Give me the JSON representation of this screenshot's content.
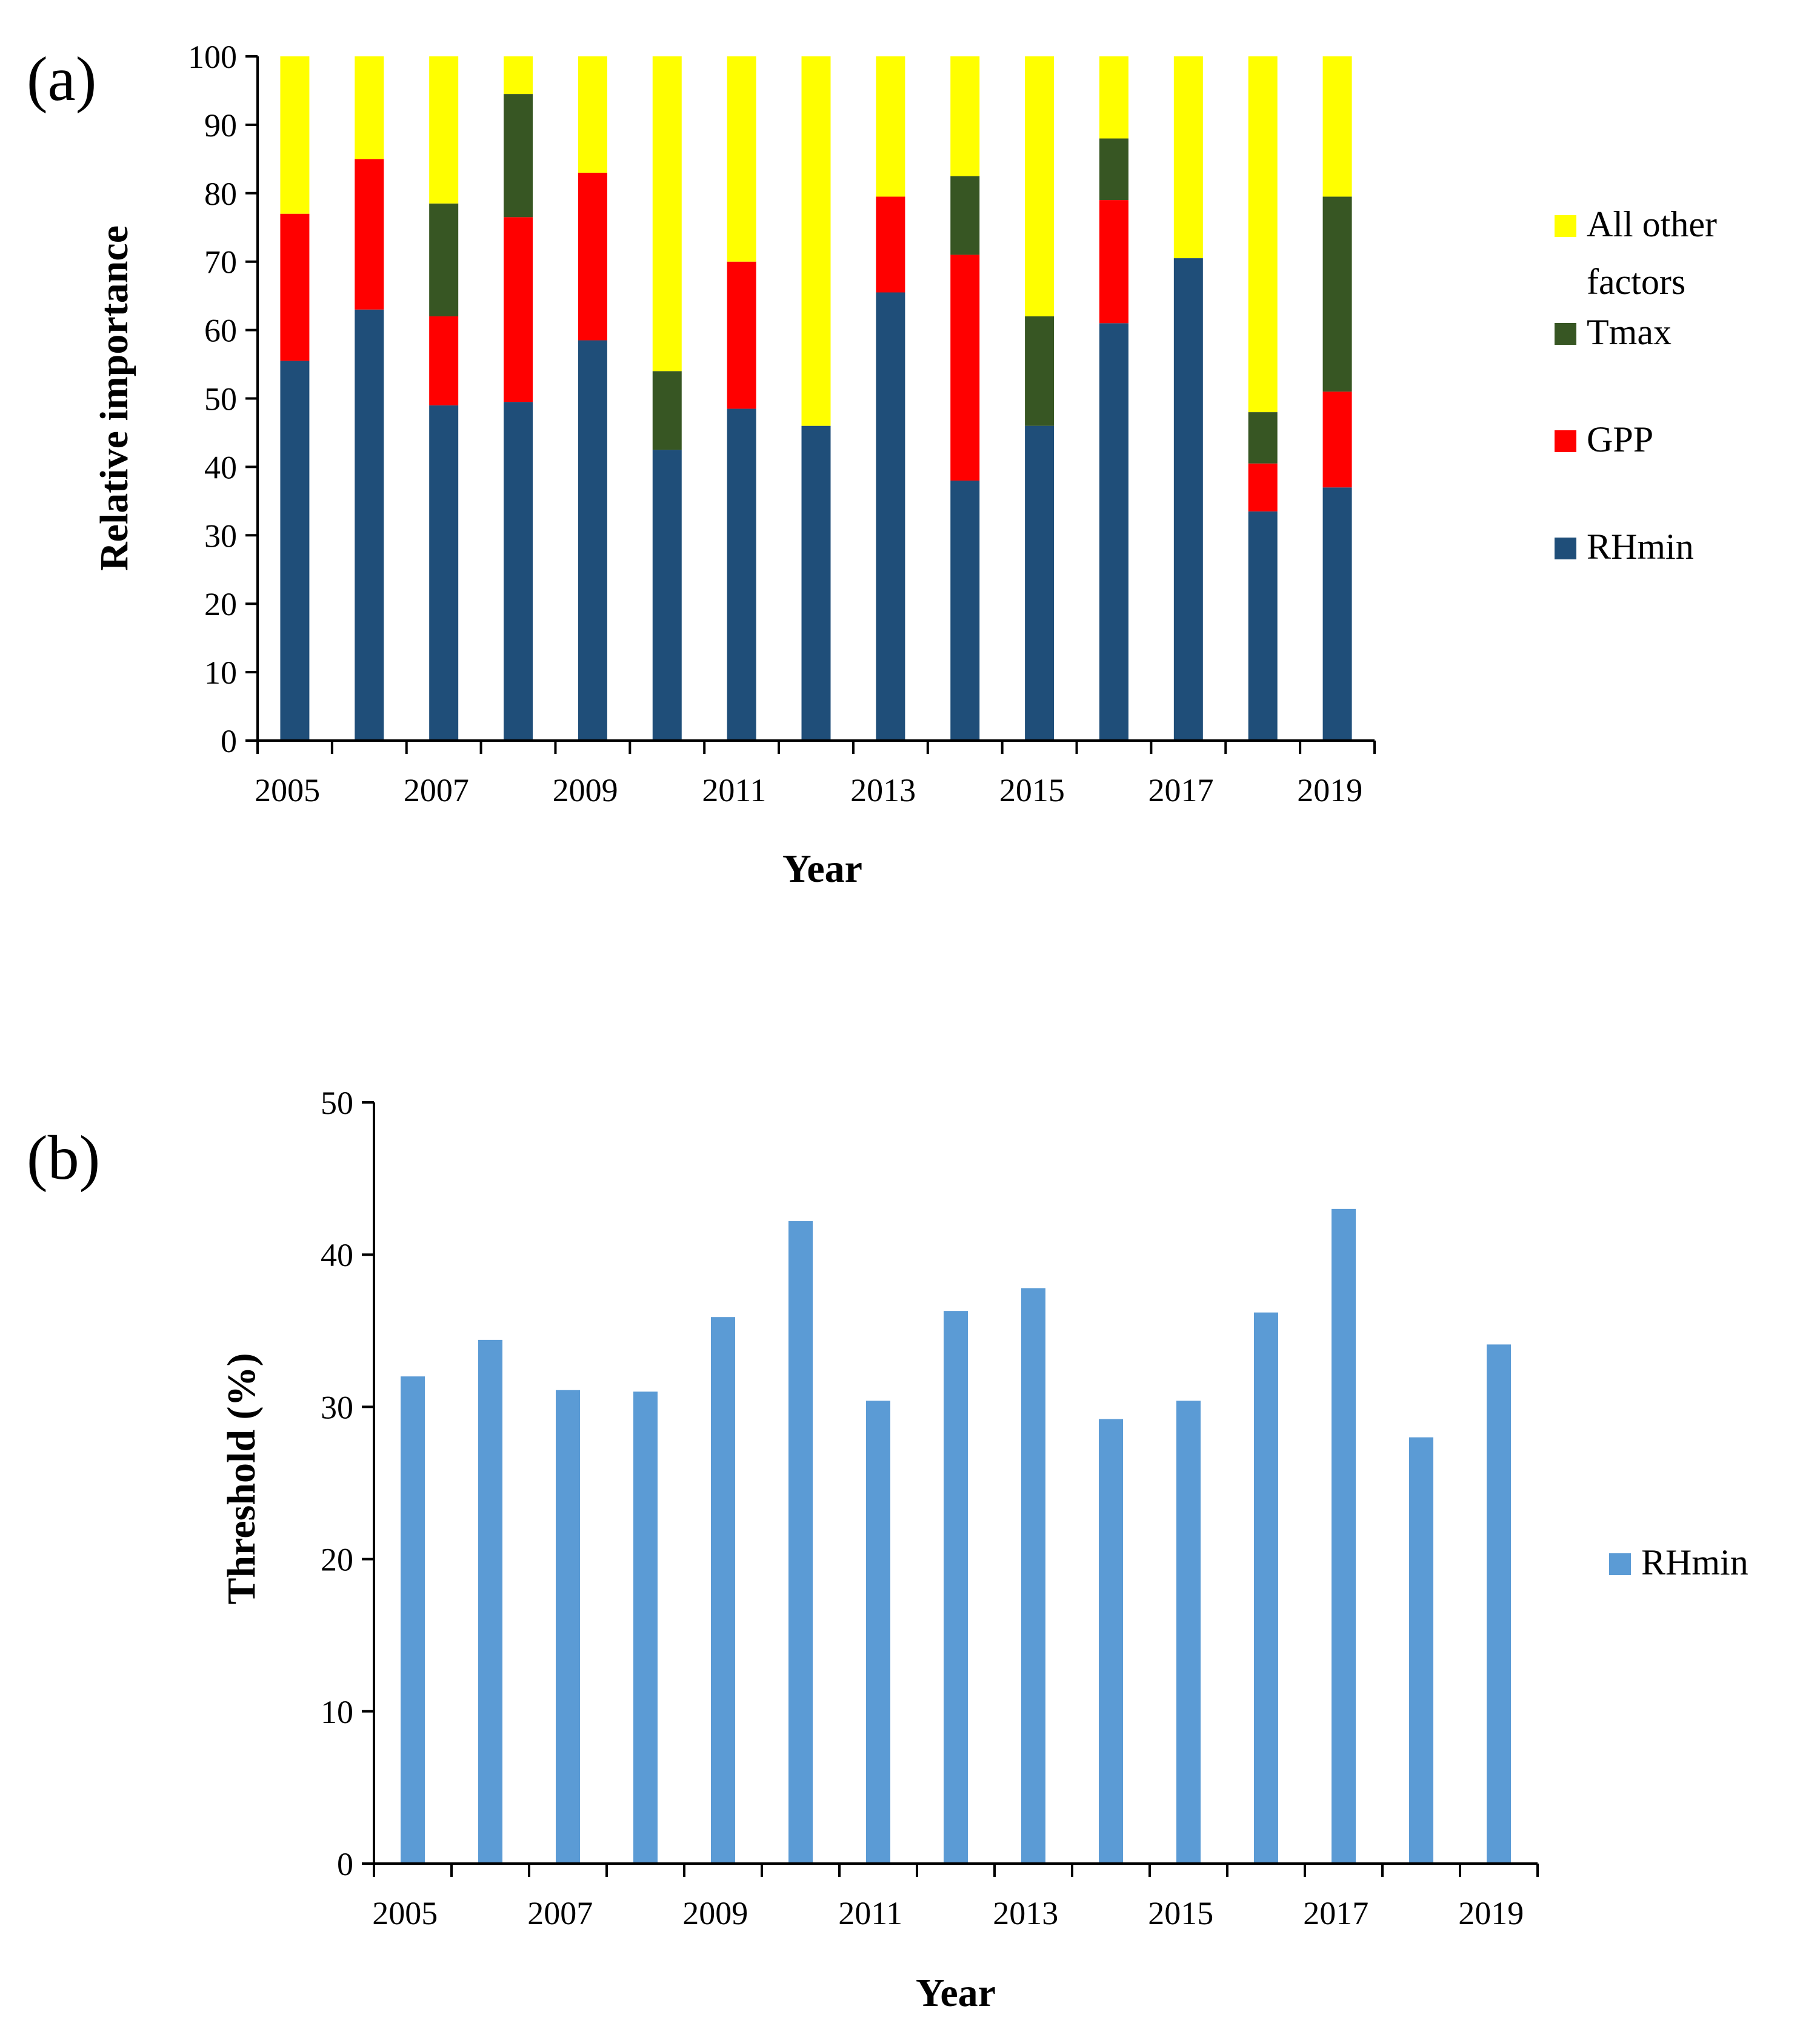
{
  "chart_data": [
    {
      "type": "bar",
      "stacked": true,
      "panel_label": "(a)",
      "title": "",
      "xlabel": "Year",
      "ylabel": "Relative importance",
      "ylim": [
        0,
        100
      ],
      "yticks": [
        0,
        10,
        20,
        30,
        40,
        50,
        60,
        70,
        80,
        90,
        100
      ],
      "categories": [
        "2005",
        "2006",
        "2007",
        "2008",
        "2009",
        "2010",
        "2011",
        "2012",
        "2013",
        "2014",
        "2015",
        "2016",
        "2017",
        "2018",
        "2019"
      ],
      "xtick_labels": [
        "2005",
        "2007",
        "2009",
        "2011",
        "2013",
        "2015",
        "2017",
        "2019"
      ],
      "legend_position": "right",
      "series": [
        {
          "name": "RHmin",
          "color": "#1f4e79",
          "values": [
            55.5,
            63,
            49,
            49.5,
            58.5,
            42.5,
            48.5,
            46,
            65.5,
            38,
            46,
            61,
            70.5,
            33.5,
            37
          ]
        },
        {
          "name": "GPP",
          "color": "#ff0000",
          "values": [
            21.5,
            22,
            13,
            27,
            24.5,
            0,
            21.5,
            0,
            14,
            33,
            0,
            18,
            0,
            7,
            14
          ]
        },
        {
          "name": "Tmax",
          "color": "#375623",
          "values": [
            0,
            0,
            16.5,
            18,
            0,
            11.5,
            0,
            0,
            0,
            11.5,
            16,
            9,
            0,
            7.5,
            28.5
          ]
        },
        {
          "name": "All other factors",
          "color": "#ffff00",
          "values": [
            23,
            15,
            21.5,
            5.5,
            17,
            46,
            30,
            54,
            20.5,
            17.5,
            38,
            12,
            29.5,
            52,
            20.5
          ]
        }
      ],
      "legend_order": [
        "All other factors",
        "Tmax",
        "GPP",
        "RHmin"
      ],
      "legend_line1": "All other",
      "legend_line2": "factors"
    },
    {
      "type": "bar",
      "panel_label": "(b)",
      "title": "",
      "xlabel": "Year",
      "ylabel": "Threshold (%)",
      "ylim": [
        0,
        50
      ],
      "yticks": [
        0,
        10,
        20,
        30,
        40,
        50
      ],
      "categories": [
        "2005",
        "2006",
        "2007",
        "2008",
        "2009",
        "2010",
        "2011",
        "2012",
        "2013",
        "2014",
        "2015",
        "2016",
        "2017",
        "2018",
        "2019"
      ],
      "xtick_labels": [
        "2005",
        "2007",
        "2009",
        "2011",
        "2013",
        "2015",
        "2017",
        "2019"
      ],
      "legend_position": "right",
      "series": [
        {
          "name": "RHmin",
          "color": "#5b9bd5",
          "values": [
            32,
            34.4,
            31.1,
            31,
            35.9,
            42.2,
            30.4,
            36.3,
            37.8,
            29.2,
            30.4,
            36.2,
            43,
            28,
            34.1
          ]
        }
      ]
    }
  ]
}
